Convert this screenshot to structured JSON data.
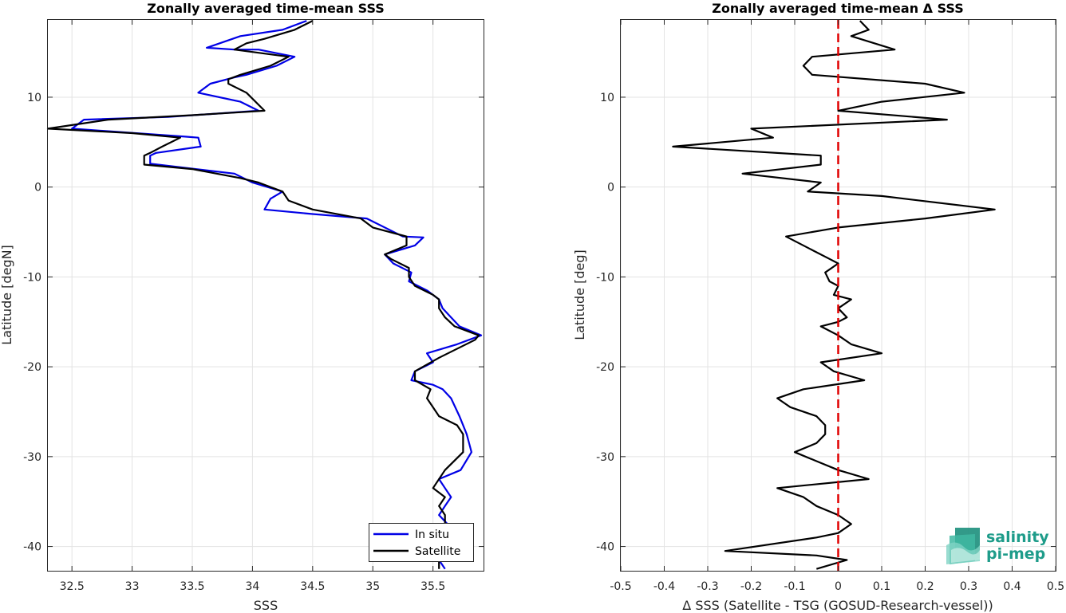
{
  "chart_data": [
    {
      "type": "line",
      "title": "Zonally averaged time-mean SSS",
      "xlabel": "SSS",
      "ylabel": "Latitude [degN]",
      "xlim": [
        32.3,
        35.92
      ],
      "ylim": [
        -42.7,
        18.6
      ],
      "xticks": [
        32.5,
        33,
        33.5,
        34,
        34.5,
        35,
        35.5
      ],
      "xtick_labels": [
        "32.5",
        "33",
        "33.5",
        "34",
        "34.5",
        "35",
        "35.5"
      ],
      "yticks": [
        10,
        0,
        -10,
        -20,
        -30,
        -40
      ],
      "ytick_labels": [
        "10",
        "0",
        "-10",
        "-20",
        "-30",
        "-40"
      ],
      "grid": true,
      "legend_position": "bottom-right",
      "series": [
        {
          "name": "In situ",
          "color": "#0000e6",
          "points": [
            [
              34.45,
              18.5
            ],
            [
              34.25,
              17.5
            ],
            [
              33.9,
              16.8
            ],
            [
              33.62,
              15.5
            ],
            [
              33.85,
              15.3
            ],
            [
              34.05,
              15.3
            ],
            [
              34.35,
              14.5
            ],
            [
              34.2,
              13.5
            ],
            [
              33.95,
              12.5
            ],
            [
              33.85,
              12.2
            ],
            [
              33.65,
              11.5
            ],
            [
              33.55,
              10.5
            ],
            [
              33.9,
              9.5
            ],
            [
              34.05,
              8.5
            ],
            [
              33.3,
              7.8
            ],
            [
              32.6,
              7.5
            ],
            [
              32.5,
              6.5
            ],
            [
              33.45,
              5.6
            ],
            [
              33.55,
              5.5
            ],
            [
              33.57,
              4.5
            ],
            [
              33.2,
              3.8
            ],
            [
              33.15,
              3.5
            ],
            [
              33.15,
              2.6
            ],
            [
              33.85,
              1.5
            ],
            [
              34.0,
              0.5
            ],
            [
              34.25,
              -0.5
            ],
            [
              34.15,
              -1.3
            ],
            [
              34.1,
              -2.5
            ],
            [
              34.5,
              -3.0
            ],
            [
              34.95,
              -3.5
            ],
            [
              35.25,
              -5.5
            ],
            [
              35.42,
              -5.6
            ],
            [
              35.35,
              -6.5
            ],
            [
              35.1,
              -7.5
            ],
            [
              35.17,
              -8.5
            ],
            [
              35.32,
              -9.5
            ],
            [
              35.3,
              -10.5
            ],
            [
              35.45,
              -11.5
            ],
            [
              35.55,
              -12.5
            ],
            [
              35.58,
              -13.5
            ],
            [
              35.65,
              -14.5
            ],
            [
              35.72,
              -15.5
            ],
            [
              35.9,
              -16.5
            ],
            [
              35.7,
              -17.5
            ],
            [
              35.45,
              -18.5
            ],
            [
              35.5,
              -19.5
            ],
            [
              35.35,
              -20.5
            ],
            [
              35.32,
              -21.5
            ],
            [
              35.5,
              -22.0
            ],
            [
              35.58,
              -22.5
            ],
            [
              35.65,
              -23.5
            ],
            [
              35.72,
              -25.5
            ],
            [
              35.75,
              -26.5
            ],
            [
              35.78,
              -27.5
            ],
            [
              35.8,
              -28.5
            ],
            [
              35.82,
              -29.5
            ],
            [
              35.73,
              -31.5
            ],
            [
              35.55,
              -32.5
            ],
            [
              35.6,
              -33.5
            ],
            [
              35.65,
              -34.5
            ],
            [
              35.6,
              -35.5
            ],
            [
              35.55,
              -36.5
            ],
            [
              35.62,
              -37.5
            ],
            [
              35.6,
              -38.5
            ],
            [
              35.55,
              -41.5
            ],
            [
              35.6,
              -42.5
            ]
          ]
        },
        {
          "name": "Satellite",
          "color": "#000000",
          "points": [
            [
              34.5,
              18.5
            ],
            [
              34.35,
              17.5
            ],
            [
              34.1,
              16.5
            ],
            [
              33.95,
              16.0
            ],
            [
              33.85,
              15.3
            ],
            [
              34.3,
              14.5
            ],
            [
              34.15,
              13.5
            ],
            [
              33.9,
              12.5
            ],
            [
              33.8,
              12.0
            ],
            [
              33.8,
              11.5
            ],
            [
              33.95,
              10.5
            ],
            [
              34.1,
              8.5
            ],
            [
              33.5,
              8.0
            ],
            [
              32.8,
              7.5
            ],
            [
              32.3,
              6.5
            ],
            [
              33.0,
              6.0
            ],
            [
              33.4,
              5.5
            ],
            [
              33.25,
              4.5
            ],
            [
              33.15,
              3.8
            ],
            [
              33.1,
              3.5
            ],
            [
              33.1,
              2.5
            ],
            [
              33.5,
              2.0
            ],
            [
              33.9,
              1.0
            ],
            [
              34.05,
              0.5
            ],
            [
              34.25,
              -0.5
            ],
            [
              34.3,
              -1.5
            ],
            [
              34.5,
              -2.5
            ],
            [
              34.9,
              -3.5
            ],
            [
              35.0,
              -4.5
            ],
            [
              35.28,
              -5.5
            ],
            [
              35.28,
              -6.5
            ],
            [
              35.1,
              -7.5
            ],
            [
              35.15,
              -8.0
            ],
            [
              35.3,
              -9.0
            ],
            [
              35.3,
              -10.0
            ],
            [
              35.35,
              -11.0
            ],
            [
              35.5,
              -12.0
            ],
            [
              35.55,
              -12.5
            ],
            [
              35.55,
              -13.5
            ],
            [
              35.6,
              -14.5
            ],
            [
              35.68,
              -15.5
            ],
            [
              35.88,
              -16.5
            ],
            [
              35.85,
              -17.0
            ],
            [
              35.55,
              -19.0
            ],
            [
              35.35,
              -20.5
            ],
            [
              35.35,
              -21.5
            ],
            [
              35.48,
              -22.5
            ],
            [
              35.45,
              -23.5
            ],
            [
              35.55,
              -25.5
            ],
            [
              35.7,
              -26.5
            ],
            [
              35.75,
              -27.5
            ],
            [
              35.75,
              -29.5
            ],
            [
              35.6,
              -31.5
            ],
            [
              35.5,
              -33.5
            ],
            [
              35.6,
              -34.5
            ],
            [
              35.55,
              -35.5
            ],
            [
              35.6,
              -36.5
            ],
            [
              35.6,
              -37.5
            ],
            [
              35.55,
              -40.5
            ],
            [
              35.55,
              -42.5
            ]
          ]
        }
      ]
    },
    {
      "type": "line",
      "title": "Zonally averaged time-mean Δ SSS",
      "xlabel": "Δ SSS (Satellite - TSG (GOSUD-Research-vessel))",
      "ylabel": "Latitude [deg]",
      "xlim": [
        -0.5,
        0.5
      ],
      "ylim": [
        -42.7,
        18.6
      ],
      "xticks": [
        -0.5,
        -0.4,
        -0.3,
        -0.2,
        -0.1,
        0,
        0.1,
        0.2,
        0.3,
        0.4,
        0.5
      ],
      "xtick_labels": [
        "-0.5",
        "-0.4",
        "-0.3",
        "-0.2",
        "-0.1",
        "0",
        "0.1",
        "0.2",
        "0.3",
        "0.4",
        "0.5"
      ],
      "yticks": [
        10,
        0,
        -10,
        -20,
        -30,
        -40
      ],
      "ytick_labels": [
        "10",
        "0",
        "-10",
        "-20",
        "-30",
        "-40"
      ],
      "grid": true,
      "reference_line": {
        "x": 0,
        "color": "#e00000",
        "style": "dashed"
      },
      "series": [
        {
          "color": "#000000",
          "points": [
            [
              0.05,
              18.5
            ],
            [
              0.07,
              17.5
            ],
            [
              0.03,
              16.8
            ],
            [
              0.13,
              15.3
            ],
            [
              -0.06,
              14.5
            ],
            [
              -0.08,
              13.5
            ],
            [
              -0.06,
              12.5
            ],
            [
              0.2,
              11.5
            ],
            [
              0.29,
              10.5
            ],
            [
              0.1,
              9.5
            ],
            [
              0.0,
              8.5
            ],
            [
              0.25,
              7.5
            ],
            [
              -0.2,
              6.5
            ],
            [
              -0.15,
              5.5
            ],
            [
              -0.38,
              4.5
            ],
            [
              -0.04,
              3.5
            ],
            [
              -0.04,
              2.5
            ],
            [
              -0.22,
              1.5
            ],
            [
              -0.04,
              0.5
            ],
            [
              -0.07,
              -0.5
            ],
            [
              0.1,
              -1.0
            ],
            [
              0.36,
              -2.5
            ],
            [
              0.2,
              -3.5
            ],
            [
              0.0,
              -4.5
            ],
            [
              -0.12,
              -5.5
            ],
            [
              -0.06,
              -7.0
            ],
            [
              -0.02,
              -8.0
            ],
            [
              0.0,
              -8.5
            ],
            [
              -0.03,
              -9.5
            ],
            [
              -0.02,
              -10.5
            ],
            [
              0.0,
              -11.0
            ],
            [
              -0.01,
              -12.0
            ],
            [
              0.03,
              -12.5
            ],
            [
              0.0,
              -13.5
            ],
            [
              0.02,
              -14.5
            ],
            [
              0.0,
              -15.0
            ],
            [
              -0.04,
              -15.5
            ],
            [
              0.0,
              -16.5
            ],
            [
              0.03,
              -17.5
            ],
            [
              0.1,
              -18.5
            ],
            [
              -0.04,
              -19.5
            ],
            [
              -0.01,
              -20.5
            ],
            [
              0.06,
              -21.5
            ],
            [
              -0.08,
              -22.5
            ],
            [
              -0.14,
              -23.5
            ],
            [
              -0.11,
              -24.5
            ],
            [
              -0.05,
              -25.5
            ],
            [
              -0.03,
              -26.5
            ],
            [
              -0.03,
              -27.5
            ],
            [
              -0.05,
              -28.5
            ],
            [
              -0.1,
              -29.5
            ],
            [
              -0.05,
              -30.5
            ],
            [
              0.0,
              -31.5
            ],
            [
              0.07,
              -32.5
            ],
            [
              -0.14,
              -33.5
            ],
            [
              -0.08,
              -34.5
            ],
            [
              -0.05,
              -35.5
            ],
            [
              0.0,
              -36.5
            ],
            [
              0.03,
              -37.5
            ],
            [
              0.0,
              -38.5
            ],
            [
              -0.05,
              -39.0
            ],
            [
              -0.26,
              -40.5
            ],
            [
              -0.05,
              -41.0
            ],
            [
              0.02,
              -41.5
            ],
            [
              -0.05,
              -42.5
            ]
          ]
        }
      ]
    }
  ],
  "logo": {
    "line1": "salinity",
    "line2": "pi-mep"
  }
}
